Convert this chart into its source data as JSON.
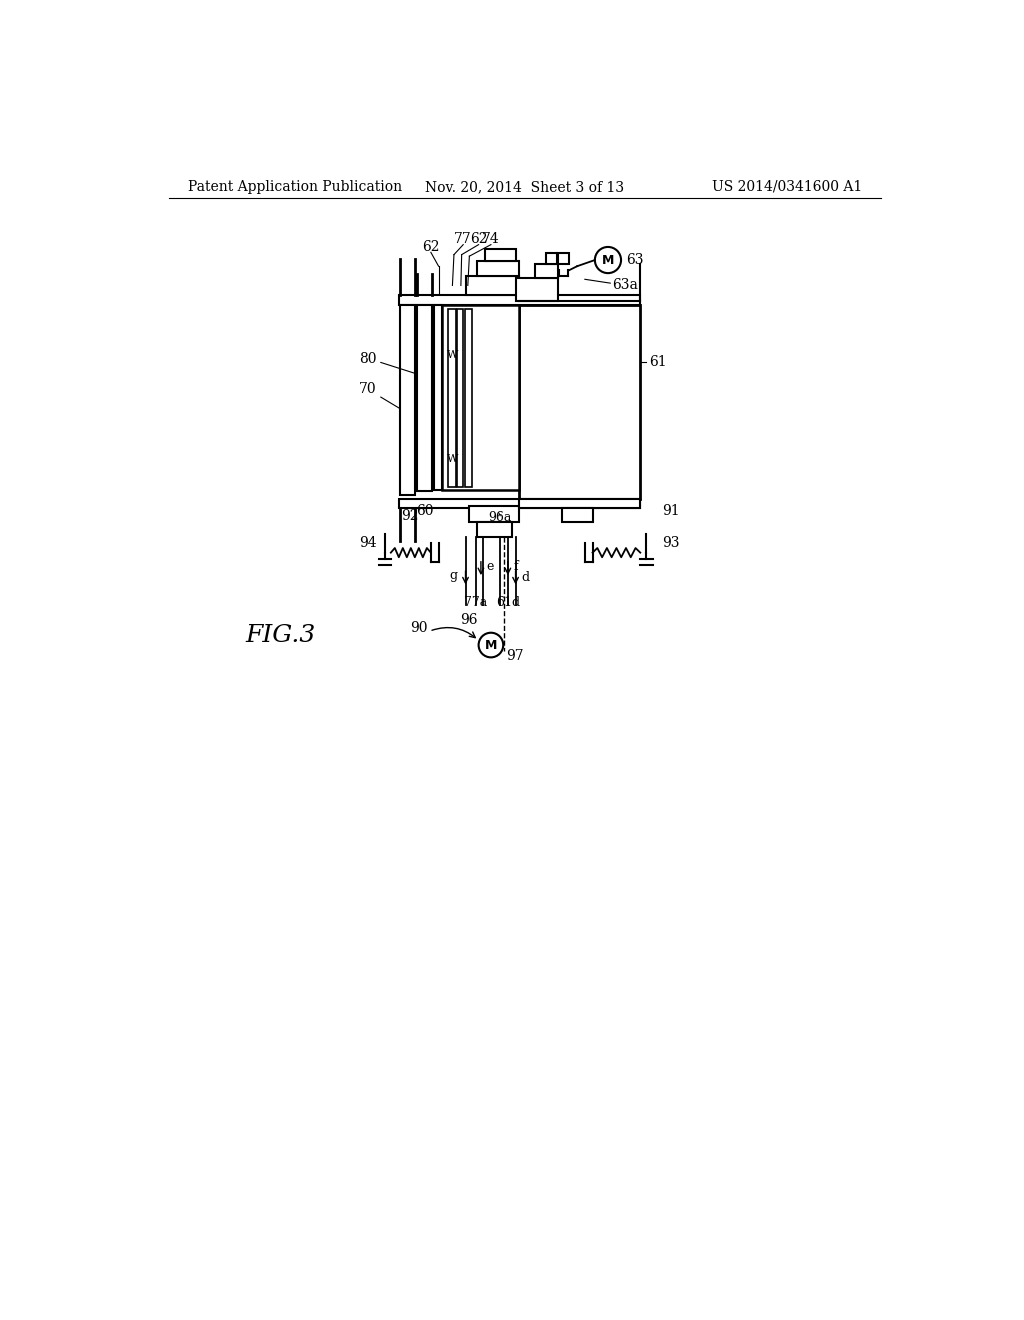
{
  "bg_color": "#ffffff",
  "line_color": "#000000",
  "header_left": "Patent Application Publication",
  "header_mid": "Nov. 20, 2014  Sheet 3 of 13",
  "header_right": "US 2014/0341600 A1",
  "fig_label": "FIG.3",
  "label_fontsize": 10,
  "fig_fontsize": 18
}
